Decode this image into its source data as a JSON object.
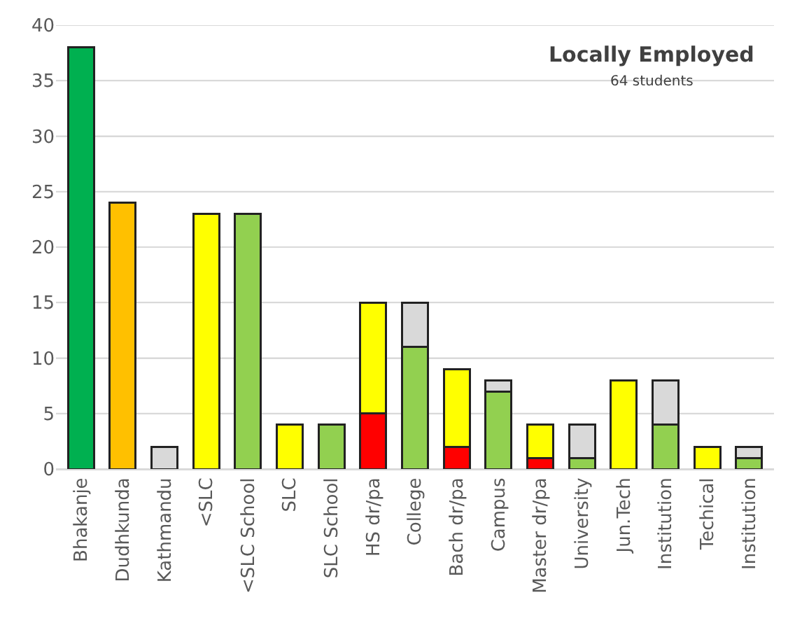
{
  "chart_data": {
    "type": "bar",
    "title": "Locally Employed",
    "subtitle": "64 students",
    "stacked": true,
    "categories": [
      "Bhakanje",
      "Dudhkunda",
      "Kathmandu",
      "<SLC",
      "<SLC School",
      "SLC",
      "SLC School",
      "HS dr/pa",
      "College",
      "Bach dr/pa",
      "Campus",
      "Master dr/pa",
      "University",
      "Jun.Tech",
      "Institution",
      "Techical",
      "Institution"
    ],
    "series": [
      {
        "color": "#00b050",
        "values": [
          38,
          null,
          null,
          null,
          null,
          null,
          null,
          null,
          null,
          null,
          null,
          null,
          null,
          null,
          null,
          null,
          null
        ]
      },
      {
        "color": "#ffc000",
        "values": [
          null,
          24,
          null,
          null,
          null,
          null,
          null,
          null,
          null,
          null,
          null,
          null,
          null,
          null,
          null,
          null,
          null
        ]
      },
      {
        "color": "#ff0000",
        "values": [
          null,
          null,
          null,
          null,
          null,
          null,
          null,
          5,
          null,
          2,
          null,
          1,
          null,
          null,
          null,
          null,
          null
        ]
      },
      {
        "color": "#ffff00",
        "values": [
          null,
          null,
          null,
          23,
          null,
          4,
          null,
          10,
          null,
          7,
          null,
          3,
          null,
          8,
          null,
          2,
          null
        ]
      },
      {
        "color": "#92d050",
        "values": [
          null,
          null,
          null,
          null,
          23,
          null,
          4,
          null,
          11,
          null,
          7,
          null,
          1,
          null,
          4,
          null,
          1
        ]
      },
      {
        "color": "#d9d9d9",
        "values": [
          null,
          null,
          2,
          null,
          null,
          null,
          null,
          null,
          4,
          null,
          1,
          null,
          3,
          null,
          4,
          null,
          1
        ]
      }
    ],
    "ylim": [
      0,
      40
    ],
    "yticks": [
      0,
      5,
      10,
      15,
      20,
      25,
      30,
      35,
      40
    ],
    "grid": "y"
  }
}
